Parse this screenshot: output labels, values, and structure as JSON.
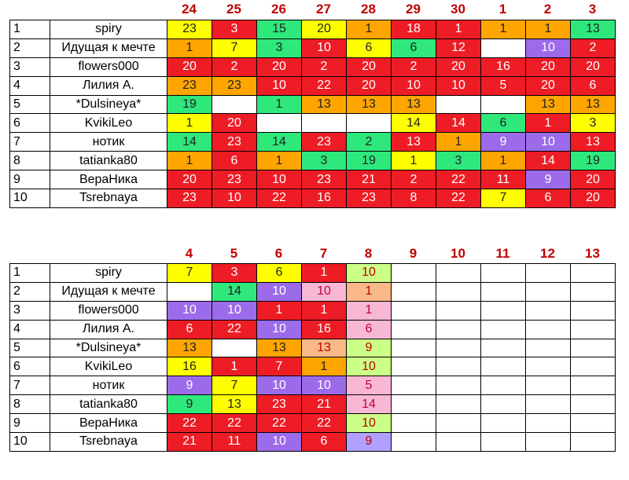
{
  "colors": {
    "red": "#ee1c25",
    "orange": "#ffa500",
    "yellow": "#ffff00",
    "green": "#2ee87c",
    "purple": "#9b6bea",
    "pink": "#f8b8d4",
    "peach": "#f8b888",
    "lime": "#ccff88",
    "lavender": "#b0a0ff",
    "header_text": "#c00000"
  },
  "table1": {
    "days": [
      "24",
      "25",
      "26",
      "27",
      "28",
      "29",
      "30",
      "1",
      "2",
      "3"
    ],
    "rows": [
      {
        "num": "1",
        "name": "spiry",
        "cells": [
          {
            "v": "23",
            "c": "yellow"
          },
          {
            "v": "3",
            "c": "red"
          },
          {
            "v": "15",
            "c": "green"
          },
          {
            "v": "20",
            "c": "yellow"
          },
          {
            "v": "1",
            "c": "orange"
          },
          {
            "v": "18",
            "c": "red"
          },
          {
            "v": "1",
            "c": "red"
          },
          {
            "v": "1",
            "c": "orange"
          },
          {
            "v": "1",
            "c": "orange"
          },
          {
            "v": "13",
            "c": "green"
          }
        ]
      },
      {
        "num": "2",
        "name": "Идущая к мечте",
        "cells": [
          {
            "v": "1",
            "c": "orange"
          },
          {
            "v": "7",
            "c": "yellow"
          },
          {
            "v": "3",
            "c": "green"
          },
          {
            "v": "10",
            "c": "red"
          },
          {
            "v": "6",
            "c": "yellow"
          },
          {
            "v": "6",
            "c": "green"
          },
          {
            "v": "12",
            "c": "red"
          },
          {
            "v": "",
            "c": "white"
          },
          {
            "v": "10",
            "c": "purple"
          },
          {
            "v": "2",
            "c": "red"
          }
        ]
      },
      {
        "num": "3",
        "name": "flowers000",
        "cells": [
          {
            "v": "20",
            "c": "red"
          },
          {
            "v": "2",
            "c": "red"
          },
          {
            "v": "20",
            "c": "red"
          },
          {
            "v": "2",
            "c": "red"
          },
          {
            "v": "20",
            "c": "red"
          },
          {
            "v": "2",
            "c": "red"
          },
          {
            "v": "20",
            "c": "red"
          },
          {
            "v": "16",
            "c": "red"
          },
          {
            "v": "20",
            "c": "red"
          },
          {
            "v": "20",
            "c": "red"
          }
        ]
      },
      {
        "num": "4",
        "name": "Лилия А.",
        "cells": [
          {
            "v": "23",
            "c": "orange"
          },
          {
            "v": "23",
            "c": "orange"
          },
          {
            "v": "10",
            "c": "red"
          },
          {
            "v": "22",
            "c": "red"
          },
          {
            "v": "20",
            "c": "red"
          },
          {
            "v": "10",
            "c": "red"
          },
          {
            "v": "10",
            "c": "red"
          },
          {
            "v": "5",
            "c": "red"
          },
          {
            "v": "20",
            "c": "red"
          },
          {
            "v": "6",
            "c": "red"
          }
        ]
      },
      {
        "num": "5",
        "name": "*Dulsineya*",
        "cells": [
          {
            "v": "19",
            "c": "green"
          },
          {
            "v": "",
            "c": "white"
          },
          {
            "v": "1",
            "c": "green"
          },
          {
            "v": "13",
            "c": "orange"
          },
          {
            "v": "13",
            "c": "orange"
          },
          {
            "v": "13",
            "c": "orange"
          },
          {
            "v": "",
            "c": "white"
          },
          {
            "v": "",
            "c": "white"
          },
          {
            "v": "13",
            "c": "orange"
          },
          {
            "v": "13",
            "c": "orange"
          }
        ]
      },
      {
        "num": "6",
        "name": "KvikiLeo",
        "cells": [
          {
            "v": "1",
            "c": "yellow"
          },
          {
            "v": "20",
            "c": "red"
          },
          {
            "v": "",
            "c": "white"
          },
          {
            "v": "",
            "c": "white"
          },
          {
            "v": "",
            "c": "white"
          },
          {
            "v": "14",
            "c": "yellow"
          },
          {
            "v": "14",
            "c": "red"
          },
          {
            "v": "6",
            "c": "green"
          },
          {
            "v": "1",
            "c": "red"
          },
          {
            "v": "3",
            "c": "yellow"
          }
        ]
      },
      {
        "num": "7",
        "name": "нотик",
        "cells": [
          {
            "v": "14",
            "c": "green"
          },
          {
            "v": "23",
            "c": "red"
          },
          {
            "v": "14",
            "c": "green"
          },
          {
            "v": "23",
            "c": "red"
          },
          {
            "v": "2",
            "c": "green"
          },
          {
            "v": "13",
            "c": "red"
          },
          {
            "v": "1",
            "c": "orange"
          },
          {
            "v": "9",
            "c": "purple"
          },
          {
            "v": "10",
            "c": "purple"
          },
          {
            "v": "13",
            "c": "red"
          }
        ]
      },
      {
        "num": "8",
        "name": "tatianka80",
        "cells": [
          {
            "v": "1",
            "c": "orange"
          },
          {
            "v": "6",
            "c": "red"
          },
          {
            "v": "1",
            "c": "orange"
          },
          {
            "v": "3",
            "c": "green"
          },
          {
            "v": "19",
            "c": "green"
          },
          {
            "v": "1",
            "c": "yellow"
          },
          {
            "v": "3",
            "c": "green"
          },
          {
            "v": "1",
            "c": "orange"
          },
          {
            "v": "14",
            "c": "red"
          },
          {
            "v": "19",
            "c": "green"
          }
        ]
      },
      {
        "num": "9",
        "name": "ВераНика",
        "cells": [
          {
            "v": "20",
            "c": "red"
          },
          {
            "v": "23",
            "c": "red"
          },
          {
            "v": "10",
            "c": "red"
          },
          {
            "v": "23",
            "c": "red"
          },
          {
            "v": "21",
            "c": "red"
          },
          {
            "v": "2",
            "c": "red"
          },
          {
            "v": "22",
            "c": "red"
          },
          {
            "v": "11",
            "c": "red"
          },
          {
            "v": "9",
            "c": "purple"
          },
          {
            "v": "20",
            "c": "red"
          }
        ]
      },
      {
        "num": "10",
        "name": "Tsrebnaya",
        "cells": [
          {
            "v": "23",
            "c": "red"
          },
          {
            "v": "10",
            "c": "red"
          },
          {
            "v": "22",
            "c": "red"
          },
          {
            "v": "16",
            "c": "red"
          },
          {
            "v": "23",
            "c": "red"
          },
          {
            "v": "8",
            "c": "red"
          },
          {
            "v": "22",
            "c": "red"
          },
          {
            "v": "7",
            "c": "yellow"
          },
          {
            "v": "6",
            "c": "red"
          },
          {
            "v": "20",
            "c": "red"
          }
        ]
      }
    ]
  },
  "table2": {
    "days": [
      "4",
      "5",
      "6",
      "7",
      "8",
      "9",
      "10",
      "11",
      "12",
      "13"
    ],
    "rows": [
      {
        "num": "1",
        "name": "spiry",
        "cells": [
          {
            "v": "7",
            "c": "yellow"
          },
          {
            "v": "3",
            "c": "red"
          },
          {
            "v": "6",
            "c": "yellow"
          },
          {
            "v": "1",
            "c": "red"
          },
          {
            "v": "10",
            "c": "lime"
          },
          {
            "v": "",
            "c": "white"
          },
          {
            "v": "",
            "c": "white"
          },
          {
            "v": "",
            "c": "white"
          },
          {
            "v": "",
            "c": "white"
          },
          {
            "v": "",
            "c": "white"
          }
        ]
      },
      {
        "num": "2",
        "name": "Идущая к мечте",
        "cells": [
          {
            "v": "",
            "c": "white"
          },
          {
            "v": "14",
            "c": "green"
          },
          {
            "v": "10",
            "c": "purple"
          },
          {
            "v": "10",
            "c": "pink"
          },
          {
            "v": "1",
            "c": "peach"
          },
          {
            "v": "",
            "c": "white"
          },
          {
            "v": "",
            "c": "white"
          },
          {
            "v": "",
            "c": "white"
          },
          {
            "v": "",
            "c": "white"
          },
          {
            "v": "",
            "c": "white"
          }
        ]
      },
      {
        "num": "3",
        "name": "flowers000",
        "cells": [
          {
            "v": "10",
            "c": "purple"
          },
          {
            "v": "10",
            "c": "purple"
          },
          {
            "v": "1",
            "c": "red"
          },
          {
            "v": "1",
            "c": "red"
          },
          {
            "v": "1",
            "c": "pink"
          },
          {
            "v": "",
            "c": "white"
          },
          {
            "v": "",
            "c": "white"
          },
          {
            "v": "",
            "c": "white"
          },
          {
            "v": "",
            "c": "white"
          },
          {
            "v": "",
            "c": "white"
          }
        ]
      },
      {
        "num": "4",
        "name": "Лилия А.",
        "cells": [
          {
            "v": "6",
            "c": "red"
          },
          {
            "v": "22",
            "c": "red"
          },
          {
            "v": "10",
            "c": "purple"
          },
          {
            "v": "16",
            "c": "red"
          },
          {
            "v": "6",
            "c": "pink"
          },
          {
            "v": "",
            "c": "white"
          },
          {
            "v": "",
            "c": "white"
          },
          {
            "v": "",
            "c": "white"
          },
          {
            "v": "",
            "c": "white"
          },
          {
            "v": "",
            "c": "white"
          }
        ]
      },
      {
        "num": "5",
        "name": "*Dulsineya*",
        "cells": [
          {
            "v": "13",
            "c": "orange"
          },
          {
            "v": "",
            "c": "white"
          },
          {
            "v": "13",
            "c": "orange"
          },
          {
            "v": "13",
            "c": "peach"
          },
          {
            "v": "9",
            "c": "lime"
          },
          {
            "v": "",
            "c": "white"
          },
          {
            "v": "",
            "c": "white"
          },
          {
            "v": "",
            "c": "white"
          },
          {
            "v": "",
            "c": "white"
          },
          {
            "v": "",
            "c": "white"
          }
        ]
      },
      {
        "num": "6",
        "name": "KvikiLeo",
        "cells": [
          {
            "v": "16",
            "c": "yellow"
          },
          {
            "v": "1",
            "c": "red"
          },
          {
            "v": "7",
            "c": "red"
          },
          {
            "v": "1",
            "c": "orange"
          },
          {
            "v": "10",
            "c": "lime"
          },
          {
            "v": "",
            "c": "white"
          },
          {
            "v": "",
            "c": "white"
          },
          {
            "v": "",
            "c": "white"
          },
          {
            "v": "",
            "c": "white"
          },
          {
            "v": "",
            "c": "white"
          }
        ]
      },
      {
        "num": "7",
        "name": "нотик",
        "cells": [
          {
            "v": "9",
            "c": "purple"
          },
          {
            "v": "7",
            "c": "yellow"
          },
          {
            "v": "10",
            "c": "purple"
          },
          {
            "v": "10",
            "c": "purple"
          },
          {
            "v": "5",
            "c": "pink"
          },
          {
            "v": "",
            "c": "white"
          },
          {
            "v": "",
            "c": "white"
          },
          {
            "v": "",
            "c": "white"
          },
          {
            "v": "",
            "c": "white"
          },
          {
            "v": "",
            "c": "white"
          }
        ]
      },
      {
        "num": "8",
        "name": "tatianka80",
        "cells": [
          {
            "v": "9",
            "c": "green"
          },
          {
            "v": "13",
            "c": "yellow"
          },
          {
            "v": "23",
            "c": "red"
          },
          {
            "v": "21",
            "c": "red"
          },
          {
            "v": "14",
            "c": "pink"
          },
          {
            "v": "",
            "c": "white"
          },
          {
            "v": "",
            "c": "white"
          },
          {
            "v": "",
            "c": "white"
          },
          {
            "v": "",
            "c": "white"
          },
          {
            "v": "",
            "c": "white"
          }
        ]
      },
      {
        "num": "9",
        "name": "ВераНика",
        "cells": [
          {
            "v": "22",
            "c": "red"
          },
          {
            "v": "22",
            "c": "red"
          },
          {
            "v": "22",
            "c": "red"
          },
          {
            "v": "22",
            "c": "red"
          },
          {
            "v": "10",
            "c": "lime"
          },
          {
            "v": "",
            "c": "white"
          },
          {
            "v": "",
            "c": "white"
          },
          {
            "v": "",
            "c": "white"
          },
          {
            "v": "",
            "c": "white"
          },
          {
            "v": "",
            "c": "white"
          }
        ]
      },
      {
        "num": "10",
        "name": "Tsrebnaya",
        "cells": [
          {
            "v": "21",
            "c": "red"
          },
          {
            "v": "11",
            "c": "red"
          },
          {
            "v": "10",
            "c": "purple"
          },
          {
            "v": "6",
            "c": "red"
          },
          {
            "v": "9",
            "c": "lavender"
          },
          {
            "v": "",
            "c": "white"
          },
          {
            "v": "",
            "c": "white"
          },
          {
            "v": "",
            "c": "white"
          },
          {
            "v": "",
            "c": "white"
          },
          {
            "v": "",
            "c": "white"
          }
        ]
      }
    ]
  }
}
